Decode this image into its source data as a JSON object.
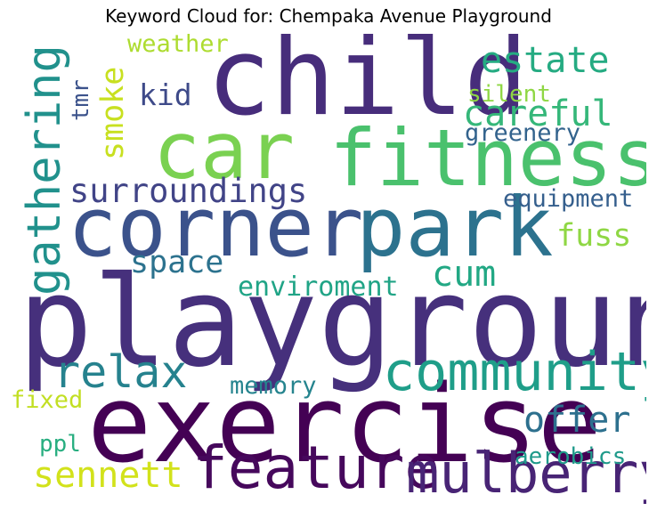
{
  "title": "Keyword Cloud for: Chempaka Avenue Playground",
  "words": {
    "playground": {
      "text": "playground",
      "color": "#46307c"
    },
    "child": {
      "text": "child",
      "color": "#472d7b"
    },
    "exercise": {
      "text": "exercise",
      "color": "#440154"
    },
    "corner": {
      "text": "corner",
      "color": "#3b528b"
    },
    "park": {
      "text": "park",
      "color": "#2c728e"
    },
    "fitness": {
      "text": "fitness",
      "color": "#4ac16d"
    },
    "car": {
      "text": "car",
      "color": "#7ad151"
    },
    "feature": {
      "text": "feature",
      "color": "#46085c"
    },
    "mulberry": {
      "text": "mulberry",
      "color": "#482475"
    },
    "community": {
      "text": "community",
      "color": "#1f9e89"
    },
    "relax": {
      "text": "relax",
      "color": "#26828e"
    },
    "gathering": {
      "text": "gathering",
      "color": "#21918c"
    },
    "surroundings": {
      "text": "surroundings",
      "color": "#414487"
    },
    "estate": {
      "text": "estate",
      "color": "#25ab82"
    },
    "careful": {
      "text": "careful",
      "color": "#35b779"
    },
    "offer": {
      "text": "offer",
      "color": "#2d708e"
    },
    "sennett": {
      "text": "sennett",
      "color": "#d2e21b"
    },
    "space": {
      "text": "space",
      "color": "#2c728e"
    },
    "cum": {
      "text": "cum",
      "color": "#22a884"
    },
    "smoke": {
      "text": "smoke",
      "color": "#c8e020"
    },
    "fuss": {
      "text": "fuss",
      "color": "#8fd744"
    },
    "enviroment": {
      "text": "enviroment",
      "color": "#20a486"
    },
    "kid": {
      "text": "kid",
      "color": "#3e4a89"
    },
    "weather": {
      "text": "weather",
      "color": "#addc30"
    },
    "equipment": {
      "text": "equipment",
      "color": "#355f8d"
    },
    "greenery": {
      "text": "greenery",
      "color": "#33638d"
    },
    "silent": {
      "text": "silent",
      "color": "#8fd744"
    },
    "memory": {
      "text": "memory",
      "color": "#25848e"
    },
    "fixed": {
      "text": "fixed",
      "color": "#c2df23"
    },
    "aerobics": {
      "text": "aerobics",
      "color": "#1f9a8a"
    },
    "ppl": {
      "text": "ppl",
      "color": "#28ae80"
    },
    "tmr": {
      "text": "tmr",
      "color": "#3b528b"
    }
  }
}
